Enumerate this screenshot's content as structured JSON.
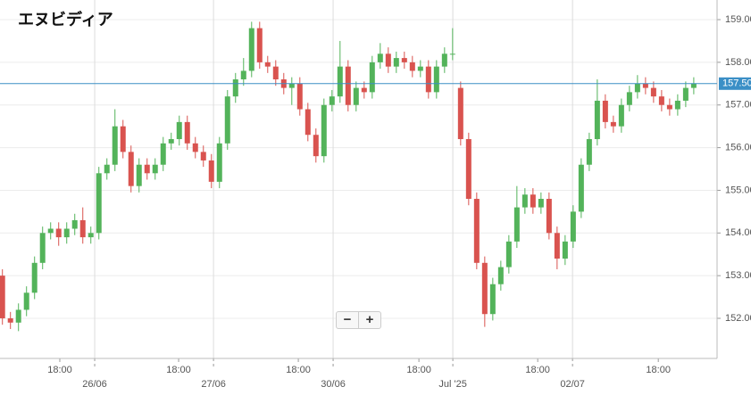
{
  "chart_data": {
    "type": "candlestick",
    "title": "エヌビディア",
    "x": [
      0,
      1,
      2,
      3,
      4,
      5,
      6,
      7,
      8,
      9,
      10,
      11,
      12,
      13,
      14,
      15,
      16,
      17,
      18,
      19,
      20,
      21,
      22,
      23,
      24,
      25,
      26,
      27,
      28,
      29,
      30,
      31,
      32,
      33,
      34,
      35,
      36,
      37,
      38,
      39,
      40,
      41,
      42,
      43,
      44,
      45,
      46,
      47,
      48,
      49,
      50,
      51,
      52,
      53,
      54,
      55,
      56,
      57,
      58,
      59,
      60,
      61,
      62,
      63,
      64,
      65,
      66,
      67,
      68,
      69,
      70,
      71,
      72,
      73,
      74,
      75,
      76,
      77,
      78,
      79,
      80,
      81,
      82,
      83,
      84,
      85,
      86
    ],
    "open": [
      153.0,
      152.0,
      151.9,
      152.2,
      152.6,
      153.3,
      154.0,
      154.1,
      153.9,
      154.1,
      154.3,
      153.9,
      154.0,
      155.4,
      155.6,
      156.5,
      155.9,
      155.1,
      155.6,
      155.4,
      155.6,
      156.1,
      156.2,
      156.6,
      156.1,
      155.9,
      155.7,
      155.2,
      156.1,
      157.2,
      157.6,
      157.8,
      158.8,
      158.0,
      157.9,
      157.6,
      157.4,
      157.5,
      156.9,
      156.3,
      155.8,
      157.0,
      157.2,
      157.9,
      157.0,
      157.4,
      157.3,
      158.0,
      158.2,
      157.9,
      158.1,
      158.0,
      157.8,
      157.9,
      157.3,
      157.9,
      158.2,
      157.4,
      156.2,
      154.8,
      153.3,
      152.1,
      152.8,
      153.2,
      153.8,
      154.6,
      154.9,
      154.6,
      154.8,
      154.0,
      153.4,
      153.8,
      154.5,
      155.6,
      156.2,
      157.1,
      156.6,
      156.5,
      157.0,
      157.3,
      157.5,
      157.4,
      157.2,
      157.0,
      156.9,
      157.1,
      157.4
    ],
    "high": [
      153.15,
      152.15,
      152.35,
      152.75,
      153.45,
      154.15,
      154.25,
      154.25,
      154.25,
      154.45,
      154.6,
      154.15,
      155.55,
      155.75,
      156.9,
      156.65,
      156.05,
      155.75,
      155.75,
      155.75,
      156.25,
      156.35,
      156.75,
      156.75,
      156.25,
      156.05,
      155.85,
      156.25,
      157.35,
      157.75,
      158.1,
      158.95,
      158.95,
      158.15,
      158.05,
      157.75,
      157.65,
      157.65,
      157.05,
      156.45,
      157.15,
      157.35,
      158.5,
      158.05,
      157.55,
      157.55,
      158.15,
      158.45,
      158.35,
      158.25,
      158.25,
      158.15,
      158.05,
      158.05,
      158.05,
      158.35,
      158.8,
      157.55,
      156.35,
      154.95,
      153.45,
      152.95,
      153.35,
      153.95,
      155.1,
      155.05,
      155.05,
      154.95,
      154.95,
      154.15,
      153.95,
      154.65,
      155.75,
      156.35,
      157.6,
      157.25,
      156.75,
      157.15,
      157.45,
      157.7,
      157.65,
      157.55,
      157.35,
      157.15,
      157.25,
      157.55,
      157.65
    ],
    "low": [
      151.85,
      151.75,
      151.7,
      152.05,
      152.45,
      153.15,
      153.85,
      153.7,
      153.75,
      153.95,
      153.75,
      153.75,
      153.85,
      155.25,
      155.45,
      155.75,
      154.95,
      154.95,
      155.25,
      155.25,
      155.45,
      155.95,
      156.05,
      155.95,
      155.75,
      155.55,
      155.05,
      155.05,
      155.95,
      157.05,
      157.45,
      157.65,
      157.85,
      157.75,
      157.45,
      157.25,
      157.0,
      156.75,
      156.15,
      155.65,
      155.65,
      156.85,
      157.05,
      156.85,
      156.85,
      157.15,
      157.15,
      157.85,
      157.75,
      157.75,
      157.85,
      157.65,
      157.65,
      157.15,
      157.15,
      157.75,
      158.05,
      156.05,
      154.65,
      153.15,
      151.8,
      151.95,
      152.65,
      153.05,
      153.65,
      154.45,
      154.45,
      154.45,
      153.85,
      153.15,
      153.25,
      153.65,
      154.35,
      155.45,
      156.05,
      156.45,
      156.35,
      156.35,
      156.85,
      157.15,
      157.25,
      157.05,
      156.85,
      156.75,
      156.75,
      156.95,
      157.25
    ],
    "close": [
      152.0,
      151.9,
      152.2,
      152.6,
      153.3,
      154.0,
      154.1,
      153.9,
      154.1,
      154.3,
      153.9,
      154.0,
      155.4,
      155.6,
      156.5,
      155.9,
      155.1,
      155.6,
      155.4,
      155.6,
      156.1,
      156.2,
      156.6,
      156.1,
      155.9,
      155.7,
      155.2,
      156.1,
      157.2,
      157.6,
      157.8,
      158.8,
      158.0,
      157.9,
      157.6,
      157.4,
      157.5,
      156.9,
      156.3,
      155.8,
      157.0,
      157.2,
      157.9,
      157.0,
      157.4,
      157.3,
      158.0,
      158.2,
      157.9,
      158.1,
      158.0,
      157.8,
      157.9,
      157.3,
      157.9,
      158.2,
      158.2,
      156.2,
      154.8,
      153.3,
      152.1,
      152.8,
      153.2,
      153.8,
      154.6,
      154.9,
      154.6,
      154.8,
      154.0,
      153.4,
      153.8,
      154.5,
      155.6,
      156.2,
      157.1,
      156.6,
      156.5,
      157.0,
      157.3,
      157.5,
      157.4,
      157.2,
      157.0,
      156.9,
      157.1,
      157.4,
      157.5
    ],
    "up_color": "#53b35a",
    "down_color": "#d9534f",
    "xlim": [
      -0.3,
      88.9
    ],
    "xticks": [
      {
        "value": 7.14,
        "label": "18:00"
      },
      {
        "value": 21.92,
        "label": "18:00"
      },
      {
        "value": 36.81,
        "label": "18:00"
      },
      {
        "value": 51.81,
        "label": "18:00"
      },
      {
        "value": 66.59,
        "label": "18:00"
      },
      {
        "value": 81.59,
        "label": "18:00"
      }
    ],
    "x_date_ticks": [
      {
        "value": 11.48,
        "label": "26/06"
      },
      {
        "value": 26.26,
        "label": "27/06"
      },
      {
        "value": 41.14,
        "label": "30/06"
      },
      {
        "value": 56.03,
        "label": "Jul '25"
      },
      {
        "value": 70.92,
        "label": "02/07"
      }
    ],
    "ylim": [
      151.06,
      159.46
    ],
    "yticks": [
      {
        "value": 152,
        "label": "152.00"
      },
      {
        "value": 153,
        "label": "153.00"
      },
      {
        "value": 154,
        "label": "154.00"
      },
      {
        "value": 155,
        "label": "155.00"
      },
      {
        "value": 156,
        "label": "156.00"
      },
      {
        "value": 157,
        "label": "157.00"
      },
      {
        "value": 158,
        "label": "158.00"
      },
      {
        "value": 159,
        "label": "159.00"
      }
    ],
    "current_price": {
      "value": 157.5,
      "label": "157.50",
      "color": "#3b8fc6"
    },
    "grid": true
  },
  "zoom_controls": [
    "−",
    "+"
  ]
}
